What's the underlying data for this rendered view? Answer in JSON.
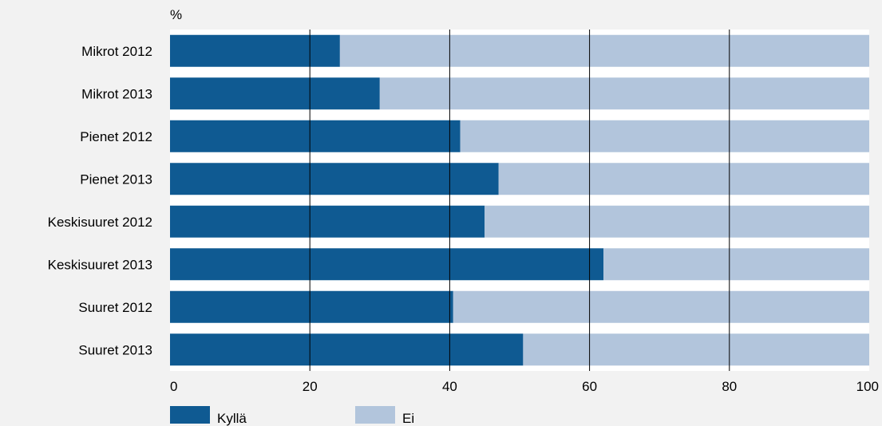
{
  "chart_data": {
    "type": "bar",
    "orientation": "horizontal",
    "stacked": true,
    "unit_label": "%",
    "categories": [
      "Mikrot 2012",
      "Mikrot 2013",
      "Pienet 2012",
      "Pienet 2013",
      "Keskisuuret 2012",
      "Keskisuuret 2013",
      "Suuret 2012",
      "Suuret 2013"
    ],
    "series": [
      {
        "name": "Kyllä",
        "color": "#0f5a92",
        "values": [
          24.3,
          30.0,
          41.5,
          47.0,
          45.0,
          62.0,
          40.5,
          50.5
        ]
      },
      {
        "name": "Ei",
        "color": "#b2c5dc",
        "values": [
          75.7,
          70.0,
          58.5,
          53.0,
          55.0,
          38.0,
          59.5,
          49.5
        ]
      }
    ],
    "xlim": [
      0,
      100
    ],
    "xticks": [
      0,
      20,
      40,
      60,
      80,
      100
    ],
    "grid": "vertical",
    "legend_position": "bottom-left"
  }
}
